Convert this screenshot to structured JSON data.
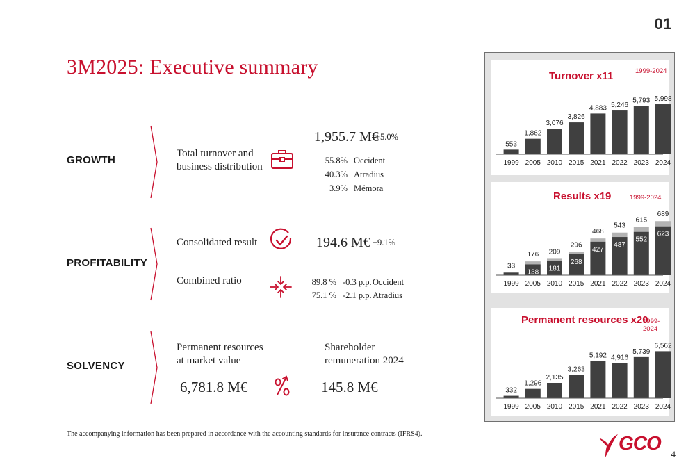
{
  "section_number": "01",
  "page_title": "3M2025: Executive summary",
  "colors": {
    "accent": "#c8102e",
    "bar_dark": "#404040",
    "bar_light": "#b3b3b3",
    "panel_bg": "#e2e2e2"
  },
  "growth": {
    "label": "GROWTH",
    "item_label": "Total turnover and\nbusiness distribution",
    "icon": "briefcase-icon",
    "value": "1,955.7 M€",
    "change": "+5.0%",
    "distribution": [
      {
        "pct": "55.8%",
        "name": "Occident"
      },
      {
        "pct": "40.3%",
        "name": "Atradius"
      },
      {
        "pct": "3.9%",
        "name": "Mémora"
      }
    ]
  },
  "profitability": {
    "label": "PROFITABILITY",
    "result_label": "Consolidated result",
    "result_icon": "check-circle-icon",
    "result_value": "194.6 M€",
    "result_change": "+9.1%",
    "ratio_label": "Combined ratio",
    "ratio_icon": "compress-arrows-icon",
    "ratios": [
      {
        "value": "89.8 %",
        "change": "-0.3 p.p.",
        "name": "Occident"
      },
      {
        "value": "75.1 %",
        "change": "-2.1 p.p.",
        "name": "Atradius"
      }
    ]
  },
  "solvency": {
    "label": "SOLVENCY",
    "resources_label": "Permanent resources\nat market value",
    "resources_value": "6,781.8 M€",
    "percent_icon": "percent-up-icon",
    "remuneration_label": "Shareholder\nremuneration 2024",
    "remuneration_value": "145.8 M€"
  },
  "footnote": "The accompanying information has been prepared in accordance with the accounting standards for insurance contracts (IFRS4).",
  "logo_text": "GCO",
  "page_number": "4",
  "chart_data": [
    {
      "type": "bar",
      "title": "Turnover x11",
      "subtitle": "1999-2024",
      "categories": [
        "1999",
        "2005",
        "2010",
        "2015",
        "2021",
        "2022",
        "2023",
        "2024"
      ],
      "values": [
        553,
        1862,
        3076,
        3826,
        4883,
        5246,
        5793,
        5998
      ],
      "labels": [
        "553",
        "1,862",
        "3,076",
        "3,826",
        "4,883",
        "5,246",
        "5,793",
        "5,998"
      ],
      "ylim": [
        0,
        6000
      ]
    },
    {
      "type": "bar",
      "title": "Results x19",
      "subtitle": "1999-2024",
      "categories": [
        "1999",
        "2005",
        "2010",
        "2015",
        "2021",
        "2022",
        "2023",
        "2024"
      ],
      "series": [
        {
          "values": [
            null,
            138,
            181,
            268,
            427,
            487,
            552,
            623
          ]
        },
        {
          "values": [
            33,
            176,
            209,
            296,
            468,
            543,
            615,
            689
          ]
        }
      ],
      "inner_labels": [
        null,
        "138",
        "181",
        "268",
        "427",
        "487",
        "552",
        "623"
      ],
      "total_labels": [
        "33",
        "176",
        "209",
        "296",
        "468",
        "543",
        "615",
        "689"
      ],
      "ylim": [
        0,
        700
      ]
    },
    {
      "type": "bar",
      "title": "Permanent resources x20",
      "subtitle": "1999-2024",
      "categories": [
        "1999",
        "2005",
        "2010",
        "2015",
        "2021",
        "2022",
        "2023",
        "2024"
      ],
      "values": [
        332,
        1296,
        2135,
        3263,
        5192,
        4916,
        5739,
        6562
      ],
      "labels": [
        "332",
        "1,296",
        "2,135",
        "3,263",
        "5,192",
        "4,916",
        "5,739",
        "6,562"
      ],
      "ylim": [
        0,
        6600
      ]
    }
  ]
}
